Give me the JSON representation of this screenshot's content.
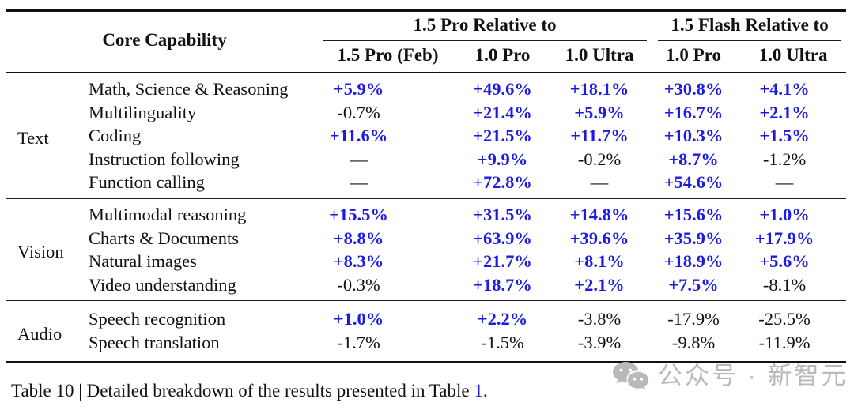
{
  "colors": {
    "positive_value": "#1b1be4",
    "text": "#111111",
    "watermark_gray": "#b9b9b9"
  },
  "table": {
    "header": {
      "core_capability": "Core Capability",
      "groups": [
        {
          "label": "1.5 Pro Relative to",
          "cols": [
            "1.5 Pro (Feb)",
            "1.0 Pro",
            "1.0 Ultra"
          ]
        },
        {
          "label": "1.5 Flash Relative to",
          "cols": [
            "1.0 Pro",
            "1.0 Ultra"
          ]
        }
      ]
    },
    "sections": [
      {
        "group": "Text",
        "rows": [
          {
            "capability": "Math, Science & Reasoning",
            "values": [
              "+5.9%",
              "+49.6%",
              "+18.1%",
              "+30.8%",
              "+4.1%"
            ]
          },
          {
            "capability": "Multilinguality",
            "values": [
              "-0.7%",
              "+21.4%",
              "+5.9%",
              "+16.7%",
              "+2.1%"
            ]
          },
          {
            "capability": "Coding",
            "values": [
              "+11.6%",
              "+21.5%",
              "+11.7%",
              "+10.3%",
              "+1.5%"
            ]
          },
          {
            "capability": "Instruction following",
            "values": [
              "—",
              "+9.9%",
              "-0.2%",
              "+8.7%",
              "-1.2%"
            ]
          },
          {
            "capability": "Function calling",
            "values": [
              "—",
              "+72.8%",
              "—",
              "+54.6%",
              "—"
            ]
          }
        ]
      },
      {
        "group": "Vision",
        "rows": [
          {
            "capability": "Multimodal reasoning",
            "values": [
              "+15.5%",
              "+31.5%",
              "+14.8%",
              "+15.6%",
              "+1.0%"
            ]
          },
          {
            "capability": "Charts & Documents",
            "values": [
              "+8.8%",
              "+63.9%",
              "+39.6%",
              "+35.9%",
              "+17.9%"
            ]
          },
          {
            "capability": "Natural images",
            "values": [
              "+8.3%",
              "+21.7%",
              "+8.1%",
              "+18.9%",
              "+5.6%"
            ]
          },
          {
            "capability": "Video understanding",
            "values": [
              "-0.3%",
              "+18.7%",
              "+2.1%",
              "+7.5%",
              "-8.1%"
            ]
          }
        ]
      },
      {
        "group": "Audio",
        "rows": [
          {
            "capability": "Speech recognition",
            "values": [
              "+1.0%",
              "+2.2%",
              "-3.8%",
              "-17.9%",
              "-25.5%"
            ]
          },
          {
            "capability": "Speech translation",
            "values": [
              "-1.7%",
              "-1.5%",
              "-3.9%",
              "-9.8%",
              "-11.9%"
            ]
          }
        ]
      }
    ],
    "caption": {
      "prefix": "Table 10 | Detailed breakdown of the results presented in Table ",
      "link": "1",
      "suffix": "."
    }
  },
  "watermark": {
    "icon": "wechat-icon",
    "text": "公众号 · 新智元"
  }
}
